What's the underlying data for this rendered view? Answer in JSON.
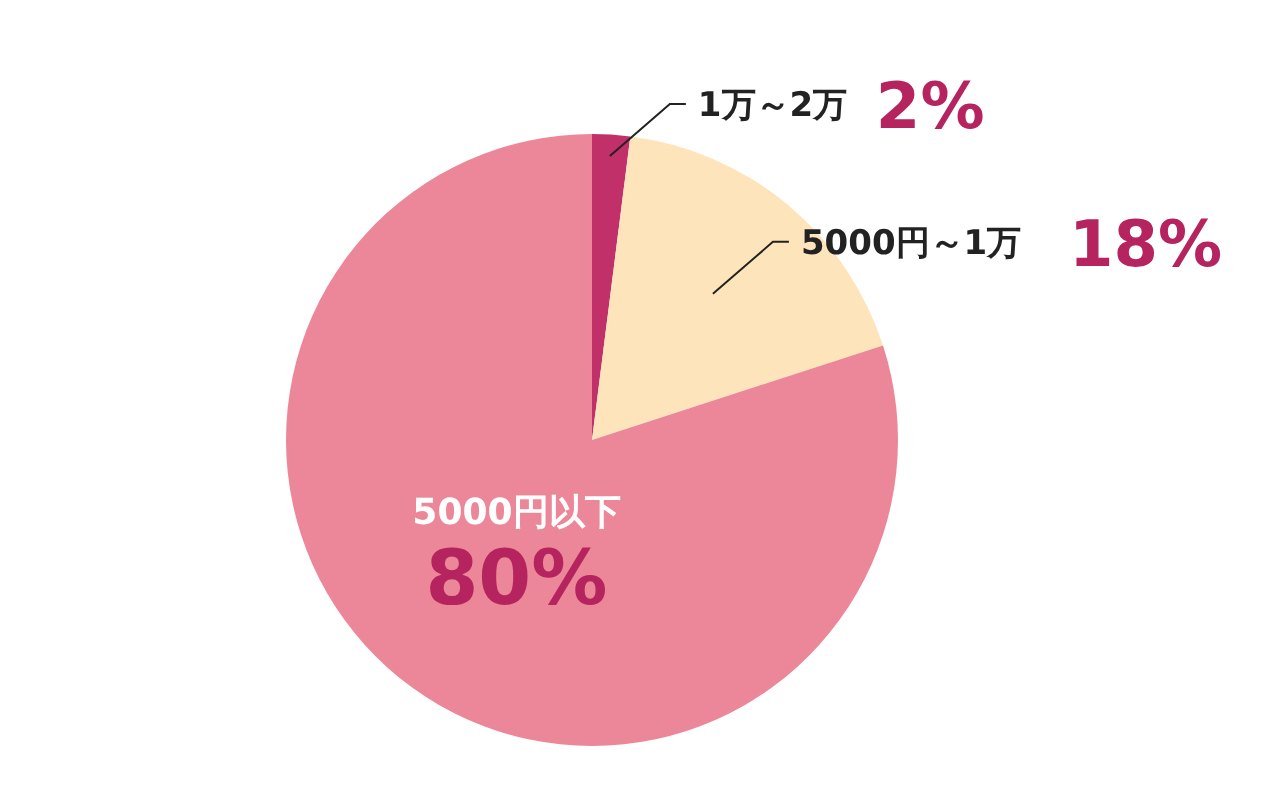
{
  "chart_data": {
    "type": "pie",
    "categories": [
      "1万～2万",
      "5000円～1万",
      "5000円以下"
    ],
    "values": [
      2,
      18,
      80
    ],
    "colors": [
      "#c2306a",
      "#fde4bb",
      "#ec8799"
    ],
    "value_labels": [
      "2%",
      "18%",
      "80%"
    ],
    "legend": false
  }
}
